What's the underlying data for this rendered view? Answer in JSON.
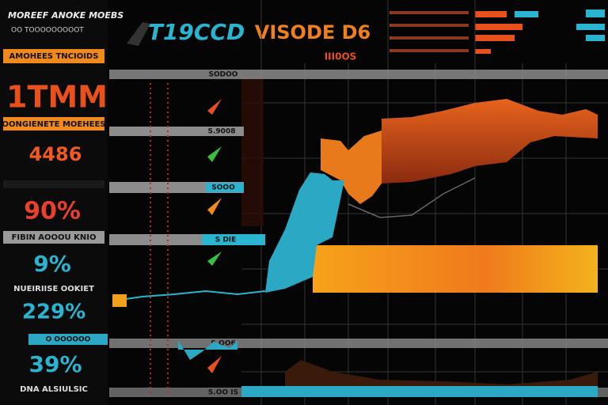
{
  "header": {
    "left_title": "MOREEF ANOKE MOEBS",
    "left_subtitle": "OO TOOOOOOOOOT",
    "logo": "T19CCD",
    "title": "VISODE D6",
    "subtitle": "III0OS"
  },
  "left_panel": {
    "banner_1": "AMOHEES TNCIOIDS",
    "metric_1": "1TMM",
    "banner_2": "OONGIENETE MOEHEES",
    "metric_2": "4486",
    "metric_3": "90%",
    "banner_3": "FIBIN AOOOU KNIO",
    "metric_4": "9%",
    "caption_1": "NUEIRIISE OOKIET",
    "metric_5": "229%",
    "caption_2": "O OOOOOO",
    "metric_6": "39%",
    "footer": "DNA ALSIULSIC"
  },
  "middle_labels": [
    "SODOO",
    "S.9008",
    "SOOO",
    "S DIE",
    "S.OO6",
    "S.OO IS"
  ]
}
